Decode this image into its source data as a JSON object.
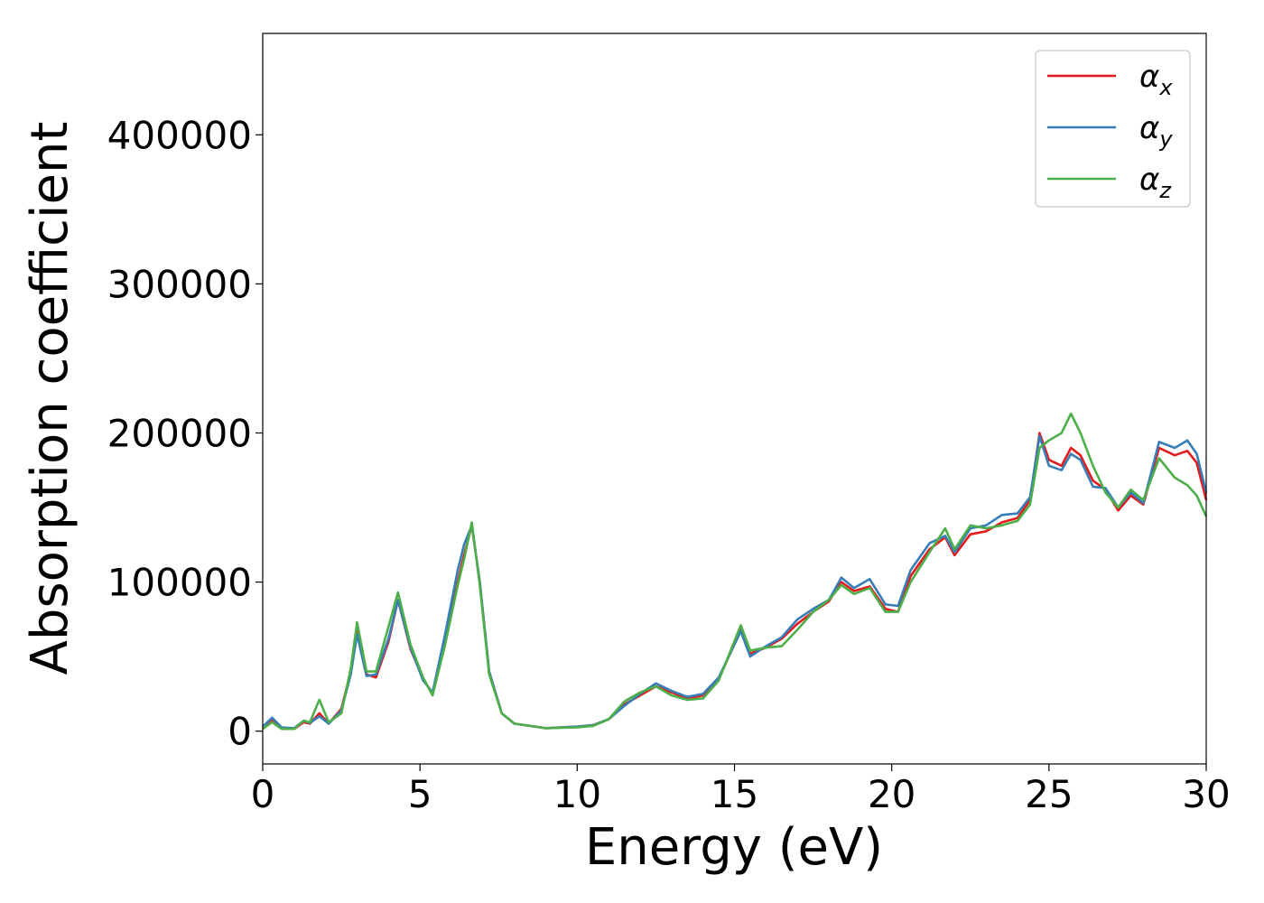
{
  "chart_data": {
    "type": "line",
    "title": "",
    "xlabel": "Energy (eV)",
    "ylabel": "Absorption coefficient",
    "xlim": [
      0,
      30
    ],
    "ylim": [
      -22000,
      468000
    ],
    "grid": false,
    "legend_position": "top-right",
    "x_ticks": [
      "0",
      "5",
      "10",
      "15",
      "20",
      "25",
      "30"
    ],
    "y_ticks": [
      "0",
      "100000",
      "200000",
      "300000",
      "400000"
    ],
    "series": [
      {
        "name": "α_x",
        "symbol": "α",
        "subscript": "x",
        "color": "#e41a1c",
        "points": [
          [
            0,
            2000
          ],
          [
            0.3,
            8000
          ],
          [
            0.6,
            2000
          ],
          [
            1.0,
            1500
          ],
          [
            1.3,
            6000
          ],
          [
            1.5,
            5000
          ],
          [
            1.8,
            12000
          ],
          [
            2.1,
            5000
          ],
          [
            2.5,
            15000
          ],
          [
            2.8,
            40000
          ],
          [
            3.0,
            70000
          ],
          [
            3.3,
            38000
          ],
          [
            3.6,
            36000
          ],
          [
            4.0,
            60000
          ],
          [
            4.3,
            88000
          ],
          [
            4.7,
            55000
          ],
          [
            5.1,
            35000
          ],
          [
            5.4,
            25000
          ],
          [
            5.8,
            60000
          ],
          [
            6.2,
            100000
          ],
          [
            6.4,
            118000
          ],
          [
            6.65,
            138000
          ],
          [
            6.9,
            100000
          ],
          [
            7.2,
            40000
          ],
          [
            7.6,
            12000
          ],
          [
            8.0,
            5000
          ],
          [
            9.0,
            2000
          ],
          [
            10.0,
            3000
          ],
          [
            10.5,
            4000
          ],
          [
            11.0,
            8000
          ],
          [
            11.5,
            18000
          ],
          [
            12.0,
            24000
          ],
          [
            12.5,
            30000
          ],
          [
            13.0,
            26000
          ],
          [
            13.5,
            22000
          ],
          [
            14.0,
            24000
          ],
          [
            14.5,
            35000
          ],
          [
            15.2,
            68000
          ],
          [
            15.5,
            52000
          ],
          [
            16.0,
            56000
          ],
          [
            16.5,
            62000
          ],
          [
            17.0,
            72000
          ],
          [
            17.5,
            80000
          ],
          [
            18.0,
            87000
          ],
          [
            18.4,
            100000
          ],
          [
            18.8,
            94000
          ],
          [
            19.3,
            97000
          ],
          [
            19.8,
            82000
          ],
          [
            20.2,
            80000
          ],
          [
            20.6,
            104000
          ],
          [
            21.2,
            122000
          ],
          [
            21.7,
            130000
          ],
          [
            22.0,
            118000
          ],
          [
            22.5,
            132000
          ],
          [
            23.0,
            134000
          ],
          [
            23.5,
            140000
          ],
          [
            24.0,
            143000
          ],
          [
            24.4,
            155000
          ],
          [
            24.7,
            200000
          ],
          [
            25.0,
            182000
          ],
          [
            25.4,
            178000
          ],
          [
            25.7,
            190000
          ],
          [
            26.0,
            185000
          ],
          [
            26.4,
            168000
          ],
          [
            26.8,
            162000
          ],
          [
            27.2,
            148000
          ],
          [
            27.6,
            158000
          ],
          [
            28.0,
            152000
          ],
          [
            28.5,
            190000
          ],
          [
            29.0,
            185000
          ],
          [
            29.4,
            188000
          ],
          [
            29.7,
            180000
          ],
          [
            30.0,
            155000
          ]
        ]
      },
      {
        "name": "α_y",
        "symbol": "α",
        "subscript": "y",
        "color": "#377eb8",
        "points": [
          [
            0,
            3000
          ],
          [
            0.3,
            9000
          ],
          [
            0.6,
            2500
          ],
          [
            1.0,
            2000
          ],
          [
            1.3,
            7000
          ],
          [
            1.5,
            5500
          ],
          [
            1.8,
            10000
          ],
          [
            2.1,
            5000
          ],
          [
            2.5,
            14000
          ],
          [
            2.8,
            38000
          ],
          [
            3.0,
            65000
          ],
          [
            3.3,
            37000
          ],
          [
            3.6,
            38000
          ],
          [
            4.0,
            62000
          ],
          [
            4.3,
            88000
          ],
          [
            4.7,
            56000
          ],
          [
            5.1,
            34000
          ],
          [
            5.4,
            26000
          ],
          [
            5.8,
            65000
          ],
          [
            6.2,
            108000
          ],
          [
            6.4,
            125000
          ],
          [
            6.65,
            138000
          ],
          [
            6.9,
            100000
          ],
          [
            7.2,
            40000
          ],
          [
            7.6,
            12000
          ],
          [
            8.0,
            5000
          ],
          [
            9.0,
            2000
          ],
          [
            10.0,
            3000
          ],
          [
            10.5,
            4000
          ],
          [
            11.0,
            8000
          ],
          [
            11.5,
            17000
          ],
          [
            12.0,
            25000
          ],
          [
            12.5,
            32000
          ],
          [
            13.0,
            27000
          ],
          [
            13.5,
            23000
          ],
          [
            14.0,
            25000
          ],
          [
            14.5,
            36000
          ],
          [
            15.2,
            67000
          ],
          [
            15.5,
            50000
          ],
          [
            16.0,
            57000
          ],
          [
            16.5,
            63000
          ],
          [
            17.0,
            75000
          ],
          [
            17.5,
            82000
          ],
          [
            18.0,
            88000
          ],
          [
            18.4,
            103000
          ],
          [
            18.8,
            96000
          ],
          [
            19.3,
            102000
          ],
          [
            19.8,
            85000
          ],
          [
            20.2,
            84000
          ],
          [
            20.6,
            108000
          ],
          [
            21.2,
            126000
          ],
          [
            21.7,
            131000
          ],
          [
            22.0,
            120000
          ],
          [
            22.5,
            136000
          ],
          [
            23.0,
            138000
          ],
          [
            23.5,
            145000
          ],
          [
            24.0,
            146000
          ],
          [
            24.4,
            157000
          ],
          [
            24.7,
            198000
          ],
          [
            25.0,
            178000
          ],
          [
            25.4,
            175000
          ],
          [
            25.7,
            186000
          ],
          [
            26.0,
            182000
          ],
          [
            26.4,
            164000
          ],
          [
            26.8,
            163000
          ],
          [
            27.2,
            150000
          ],
          [
            27.6,
            160000
          ],
          [
            28.0,
            153000
          ],
          [
            28.5,
            194000
          ],
          [
            29.0,
            190000
          ],
          [
            29.4,
            195000
          ],
          [
            29.7,
            186000
          ],
          [
            30.0,
            160000
          ]
        ]
      },
      {
        "name": "α_z",
        "symbol": "α",
        "subscript": "z",
        "color": "#4daf4a",
        "points": [
          [
            0,
            1500
          ],
          [
            0.3,
            6000
          ],
          [
            0.6,
            1500
          ],
          [
            1.0,
            1500
          ],
          [
            1.3,
            7000
          ],
          [
            1.5,
            6000
          ],
          [
            1.8,
            21000
          ],
          [
            2.1,
            6000
          ],
          [
            2.5,
            12000
          ],
          [
            2.8,
            42000
          ],
          [
            3.0,
            73000
          ],
          [
            3.3,
            40000
          ],
          [
            3.6,
            40000
          ],
          [
            4.0,
            70000
          ],
          [
            4.3,
            93000
          ],
          [
            4.7,
            58000
          ],
          [
            5.1,
            36000
          ],
          [
            5.4,
            24000
          ],
          [
            5.8,
            58000
          ],
          [
            6.2,
            98000
          ],
          [
            6.4,
            115000
          ],
          [
            6.65,
            140000
          ],
          [
            6.9,
            98000
          ],
          [
            7.2,
            38000
          ],
          [
            7.6,
            12000
          ],
          [
            8.0,
            5000
          ],
          [
            9.0,
            2000
          ],
          [
            10.0,
            2500
          ],
          [
            10.5,
            3500
          ],
          [
            11.0,
            8000
          ],
          [
            11.5,
            20000
          ],
          [
            12.0,
            26000
          ],
          [
            12.5,
            30000
          ],
          [
            13.0,
            24000
          ],
          [
            13.5,
            21000
          ],
          [
            14.0,
            22000
          ],
          [
            14.5,
            34000
          ],
          [
            15.2,
            71000
          ],
          [
            15.5,
            54000
          ],
          [
            16.0,
            56000
          ],
          [
            16.5,
            57000
          ],
          [
            17.0,
            68000
          ],
          [
            17.5,
            80000
          ],
          [
            18.0,
            88000
          ],
          [
            18.4,
            98000
          ],
          [
            18.8,
            92000
          ],
          [
            19.3,
            96000
          ],
          [
            19.8,
            80000
          ],
          [
            20.2,
            80000
          ],
          [
            20.6,
            100000
          ],
          [
            21.2,
            120000
          ],
          [
            21.7,
            136000
          ],
          [
            22.0,
            122000
          ],
          [
            22.5,
            138000
          ],
          [
            23.0,
            136000
          ],
          [
            23.5,
            138000
          ],
          [
            24.0,
            141000
          ],
          [
            24.4,
            152000
          ],
          [
            24.7,
            190000
          ],
          [
            25.0,
            195000
          ],
          [
            25.4,
            200000
          ],
          [
            25.7,
            213000
          ],
          [
            26.0,
            200000
          ],
          [
            26.4,
            178000
          ],
          [
            26.8,
            160000
          ],
          [
            27.2,
            150000
          ],
          [
            27.6,
            162000
          ],
          [
            28.0,
            155000
          ],
          [
            28.5,
            183000
          ],
          [
            29.0,
            170000
          ],
          [
            29.4,
            165000
          ],
          [
            29.7,
            158000
          ],
          [
            30.0,
            144000
          ]
        ]
      }
    ]
  }
}
